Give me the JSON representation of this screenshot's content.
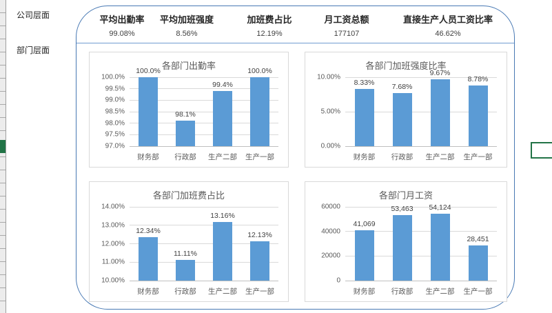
{
  "left_labels": [
    {
      "text": "公司层面"
    },
    {
      "text": "部门层面"
    }
  ],
  "kpis": [
    {
      "title": "平均出勤率",
      "value": "99.08%"
    },
    {
      "title": "平均加班强度",
      "value": "8.56%"
    },
    {
      "title": "加班费占比",
      "value": "12.19%"
    },
    {
      "title": "月工资总额",
      "value": "177107"
    },
    {
      "title": "直接生产人员工资比率",
      "value": "46.62%"
    }
  ],
  "colors": {
    "bar": "#5b9bd5",
    "container_border": "#4778b3",
    "card_border": "#d9d9d9",
    "selection_green": "#217346"
  },
  "chart_data": [
    {
      "type": "bar",
      "title": "各部门出勤率",
      "categories": [
        "财务部",
        "行政部",
        "生产二部",
        "生产一部"
      ],
      "values": [
        100.0,
        98.1,
        99.4,
        100.0
      ],
      "value_labels": [
        "100.0%",
        "98.1%",
        "99.4%",
        "100.0%"
      ],
      "ylim": [
        97,
        100
      ],
      "grid": true,
      "yticks": [
        {
          "v": 100.0,
          "label": "100.0%"
        },
        {
          "v": 99.5,
          "label": "99.5%"
        },
        {
          "v": 99.0,
          "label": "99.0%"
        },
        {
          "v": 98.5,
          "label": "98.5%"
        },
        {
          "v": 98.0,
          "label": "98.0%"
        },
        {
          "v": 97.5,
          "label": "97.5%"
        },
        {
          "v": 97.0,
          "label": "97.0%"
        }
      ]
    },
    {
      "type": "bar",
      "title": "各部门加班强度比率",
      "categories": [
        "财务部",
        "行政部",
        "生产二部",
        "生产一部"
      ],
      "values": [
        8.33,
        7.68,
        9.67,
        8.78
      ],
      "value_labels": [
        "8.33%",
        "7.68%",
        "9.67%",
        "8.78%"
      ],
      "ylim": [
        0,
        10
      ],
      "grid": true,
      "yticks": [
        {
          "v": 10,
          "label": "10.00%"
        },
        {
          "v": 5,
          "label": "5.00%"
        },
        {
          "v": 0,
          "label": "0.00%"
        }
      ]
    },
    {
      "type": "bar",
      "title": "各部门加班费占比",
      "categories": [
        "财务部",
        "行政部",
        "生产二部",
        "生产一部"
      ],
      "values": [
        12.34,
        11.11,
        13.16,
        12.13
      ],
      "value_labels": [
        "12.34%",
        "11.11%",
        "13.16%",
        "12.13%"
      ],
      "ylim": [
        10,
        14
      ],
      "grid": true,
      "yticks": [
        {
          "v": 14,
          "label": "14.00%"
        },
        {
          "v": 13,
          "label": "13.00%"
        },
        {
          "v": 12,
          "label": "12.00%"
        },
        {
          "v": 11,
          "label": "11.00%"
        },
        {
          "v": 10,
          "label": "10.00%"
        }
      ]
    },
    {
      "type": "bar",
      "title": "各部门月工资",
      "categories": [
        "财务部",
        "行政部",
        "生产二部",
        "生产一部"
      ],
      "values": [
        41069,
        53463,
        54124,
        28451
      ],
      "value_labels": [
        "41,069",
        "53,463",
        "54,124",
        "28,451"
      ],
      "ylim": [
        0,
        60000
      ],
      "grid": true,
      "yticks": [
        {
          "v": 60000,
          "label": "60000"
        },
        {
          "v": 40000,
          "label": "40000"
        },
        {
          "v": 20000,
          "label": "20000"
        },
        {
          "v": 0,
          "label": "0"
        }
      ]
    }
  ]
}
